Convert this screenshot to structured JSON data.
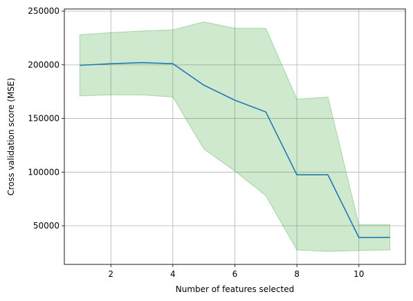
{
  "chart_data": {
    "type": "line",
    "title": "",
    "xlabel": "Number of features selected",
    "ylabel": "Cross validation score (MSE)",
    "xlim": [
      0.5,
      11.5
    ],
    "ylim": [
      14000,
      252000
    ],
    "x_ticks": [
      2,
      4,
      6,
      8,
      10
    ],
    "x_tick_labels": [
      "2",
      "4",
      "6",
      "8",
      "10"
    ],
    "y_ticks": [
      50000,
      100000,
      150000,
      200000,
      250000
    ],
    "y_tick_labels": [
      "50000",
      "100000",
      "150000",
      "200000",
      "250000"
    ],
    "grid": true,
    "series": [
      {
        "x": [
          1,
          2,
          3,
          4,
          5,
          6,
          7,
          8,
          9,
          10,
          11
        ],
        "values": [
          199500,
          201000,
          202000,
          201000,
          181000,
          167000,
          156000,
          97500,
          97500,
          39000,
          39200
        ],
        "lower": [
          171000,
          172000,
          172000,
          170000,
          121500,
          101000,
          78000,
          27500,
          26000,
          27000,
          27500
        ],
        "upper": [
          228000,
          230000,
          231500,
          232500,
          240000,
          234000,
          234000,
          168000,
          170000,
          51000,
          51000
        ],
        "color": "#1f77b4",
        "band_color": "#2ca02c"
      }
    ]
  }
}
